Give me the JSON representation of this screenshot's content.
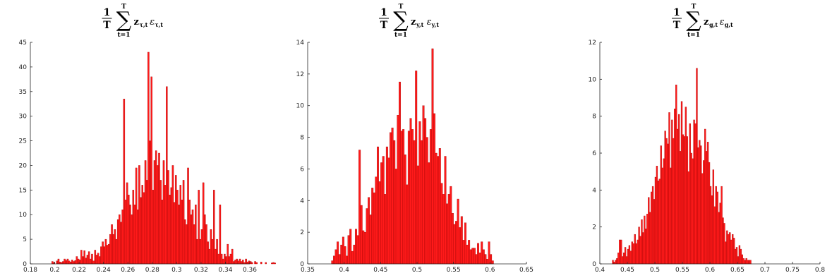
{
  "chart_data": [
    {
      "type": "bar",
      "title": "1/T Σ_{t=1}^{T} z_{τ,t} ε_{τ,t}",
      "title_parts": {
        "frac_num": "1",
        "frac_den": "T",
        "sum": "∑",
        "sum_top": "T",
        "sum_bottom": "t=1",
        "var": "z",
        "var_sub": "τ,t",
        "eps": "ε",
        "eps_sub": "τ,t"
      },
      "xlim": [
        0.18,
        0.36
      ],
      "ylim": [
        0,
        45
      ],
      "xticks": [
        "0.18",
        "0.2",
        "0.22",
        "0.24",
        "0.26",
        "0.28",
        "0.3",
        "0.32",
        "0.34",
        "0.36"
      ],
      "yticks": [
        "0",
        "5",
        "10",
        "15",
        "20",
        "25",
        "30",
        "35",
        "40",
        "45"
      ],
      "bin_start": 0.1975,
      "bin_width": 0.00125,
      "values": [
        0.5,
        0.3,
        0,
        0.6,
        1,
        0.4,
        0.3,
        0.5,
        1,
        0.7,
        1,
        0.6,
        0.4,
        0.8,
        0.5,
        0.7,
        1.5,
        1,
        0.8,
        2.8,
        1.5,
        2.7,
        1.2,
        1.8,
        2.5,
        1,
        2,
        0.6,
        2.8,
        1.8,
        2.2,
        1.5,
        3.5,
        4.5,
        3.5,
        5,
        3.8,
        4,
        6,
        8,
        6,
        7,
        5,
        9,
        10,
        8.5,
        11,
        33.5,
        13,
        16.5,
        14,
        12,
        10,
        15,
        12,
        19.5,
        11,
        20,
        13.5,
        16,
        14.5,
        21,
        17,
        43,
        25,
        38,
        15,
        21,
        23,
        20,
        22.5,
        17,
        13,
        21,
        16,
        36,
        19,
        14,
        15.5,
        20,
        12.5,
        18,
        15,
        12,
        16,
        13,
        17,
        9,
        8,
        19.5,
        13,
        10,
        11,
        8,
        12,
        5,
        15,
        5,
        7,
        16.5,
        10,
        8,
        4.5,
        3,
        7,
        5,
        15,
        3,
        5,
        2,
        12,
        2,
        1,
        2,
        1.5,
        4,
        1.5,
        2,
        3,
        0.5,
        0.8,
        1,
        0.6,
        1,
        0.5,
        0.8,
        0.3,
        1,
        0.4,
        0.6,
        0.5,
        0.3,
        0,
        0.5,
        0.3,
        0,
        0,
        0.4,
        0,
        0,
        0.3,
        0,
        0,
        0,
        0.2,
        0.3,
        0.2
      ]
    },
    {
      "type": "bar",
      "title": "1/T Σ_{t=1}^{T} z_{y,t} ε_{y,t}",
      "title_parts": {
        "frac_num": "1",
        "frac_den": "T",
        "sum": "∑",
        "sum_top": "T",
        "sum_bottom": "t=1",
        "var": "z",
        "var_sub": "y,t",
        "eps": "ε",
        "eps_sub": "y,t"
      },
      "xlim": [
        0.35,
        0.65
      ],
      "ylim": [
        0,
        14
      ],
      "xticks": [
        "0.35",
        "0.4",
        "0.45",
        "0.5",
        "0.55",
        "0.6",
        "0.65"
      ],
      "yticks": [
        "0",
        "2",
        "4",
        "6",
        "8",
        "10",
        "12",
        "14"
      ],
      "bin_start": 0.3825,
      "bin_width": 0.0025,
      "values": [
        0.2,
        0.5,
        0.9,
        1.4,
        0.6,
        1.2,
        1.7,
        1.1,
        0.5,
        1.8,
        2.2,
        0.8,
        1.2,
        2.2,
        1.8,
        7.2,
        3.7,
        2.1,
        2,
        3.5,
        4.2,
        3.1,
        4.8,
        4.5,
        5.5,
        7.4,
        5.2,
        6.4,
        6.8,
        4.4,
        7.4,
        6.7,
        8.3,
        8.6,
        7.8,
        6,
        9.4,
        11.5,
        8.4,
        8.5,
        6.9,
        5,
        8.4,
        9.2,
        8.5,
        7.8,
        12.2,
        6.2,
        9,
        7.8,
        10,
        9.2,
        8,
        6.4,
        8.5,
        13.6,
        9.5,
        7,
        6.8,
        7.3,
        5.1,
        4.4,
        6.8,
        3.8,
        4.4,
        4.9,
        3.2,
        2.5,
        2.7,
        4.1,
        2.3,
        3,
        1.5,
        2.6,
        1.2,
        1.5,
        0.9,
        1,
        1,
        0.6,
        1.3,
        0.7,
        1.4,
        0.9,
        0.6,
        0.3,
        1.4,
        0.6,
        0.2
      ]
    },
    {
      "type": "bar",
      "title": "1/T Σ_{t=1}^{T} z_{g,t} ε_{g,t}",
      "title_parts": {
        "frac_num": "1",
        "frac_den": "T",
        "sum": "∑",
        "sum_top": "T",
        "sum_bottom": "t=1",
        "var": "z",
        "var_sub": "g,t",
        "eps": "ε",
        "eps_sub": "g,t"
      },
      "xlim": [
        0.4,
        0.8
      ],
      "ylim": [
        0,
        12
      ],
      "xticks": [
        "0.4",
        "0.45",
        "0.5",
        "0.55",
        "0.6",
        "0.65",
        "0.7",
        "0.75",
        "0.8"
      ],
      "yticks": [
        "0",
        "2",
        "4",
        "6",
        "8",
        "10",
        "12"
      ],
      "bin_start": 0.4225,
      "bin_width": 0.0025,
      "values": [
        0.2,
        0.1,
        0.2,
        0.3,
        0.6,
        1.3,
        1.3,
        0.4,
        0.6,
        0.9,
        0.4,
        0.8,
        1,
        0.7,
        1.2,
        1.1,
        1.6,
        1.1,
        1.3,
        2,
        1.5,
        2.4,
        1.7,
        2.6,
        1.9,
        2.7,
        3.6,
        2.8,
        3.9,
        4.2,
        3.5,
        4.7,
        5.3,
        4.5,
        4.6,
        6.4,
        5.2,
        5.7,
        7.2,
        6.8,
        6.5,
        8.2,
        5.2,
        7.8,
        6.8,
        8.4,
        9.7,
        7.3,
        8.1,
        6.1,
        8.8,
        7,
        6.9,
        8.5,
        6.9,
        5,
        7.6,
        6,
        5.7,
        7.8,
        7.6,
        10.6,
        6.3,
        6.7,
        6.4,
        4.9,
        5.6,
        7.3,
        6.1,
        6.6,
        5.5,
        4.2,
        3.7,
        5.1,
        3.1,
        4.2,
        3.9,
        2.8,
        3.3,
        4.2,
        2.5,
        2.2,
        1.2,
        1.8,
        1.6,
        1.7,
        1.3,
        1.6,
        1.4,
        0.8,
        0.9,
        0.4,
        1,
        0.8,
        0.5,
        0.3,
        0.2,
        0.3,
        0.2,
        0.2,
        0.2
      ]
    }
  ]
}
